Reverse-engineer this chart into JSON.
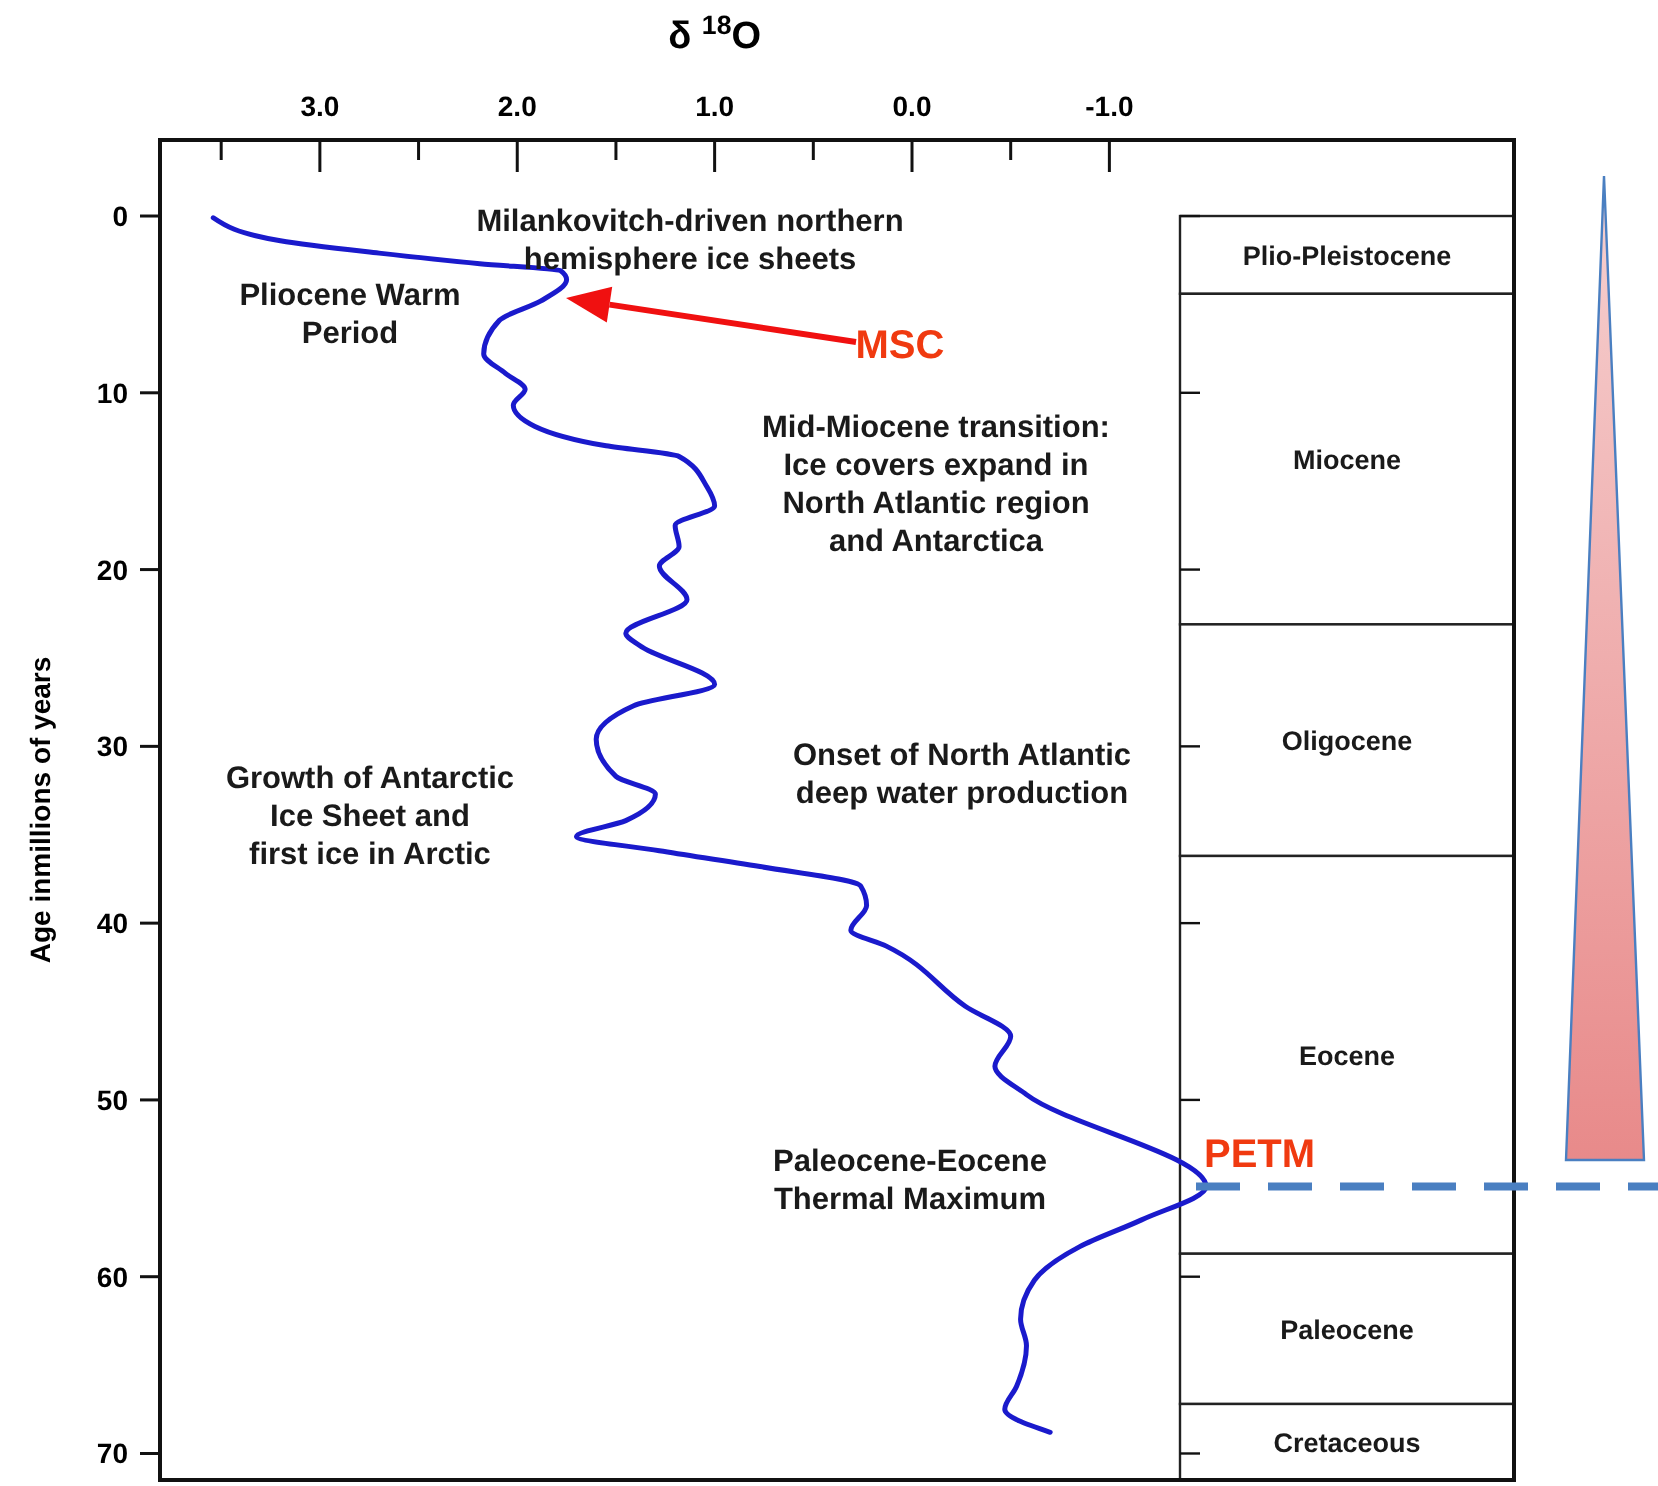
{
  "chart_data": {
    "type": "line",
    "xlabel": "δ $^{18}$O",
    "ylabel": "Age inmillions of years",
    "xlim": [
      3.81,
      -3.05
    ],
    "ylim": [
      71.5,
      -4.3
    ],
    "xticks": [
      {
        "value": 3.5,
        "label": null
      },
      {
        "value": 3.0,
        "label": "3.0"
      },
      {
        "value": 2.5,
        "label": null
      },
      {
        "value": 2.0,
        "label": "2.0"
      },
      {
        "value": 1.5,
        "label": null
      },
      {
        "value": 1.0,
        "label": "1.0"
      },
      {
        "value": 0.5,
        "label": null
      },
      {
        "value": 0.0,
        "label": "0.0"
      },
      {
        "value": -0.5,
        "label": null
      },
      {
        "value": -1.0,
        "label": "-1.0"
      }
    ],
    "yticks": [
      0,
      10,
      20,
      30,
      40,
      50,
      60,
      70
    ],
    "grid": false,
    "series": [
      {
        "color": "#1a1acc",
        "x": [
          3.54,
          3.2,
          2.7,
          2.19,
          1.78,
          1.75,
          1.88,
          2.09,
          2.17,
          2.06,
          1.96,
          2.02,
          1.91,
          1.55,
          1.18,
          1.04,
          1.0,
          1.2,
          1.18,
          1.28,
          1.14,
          1.45,
          1.38,
          1.0,
          1.41,
          1.6,
          1.5,
          1.3,
          1.45,
          1.7,
          1.28,
          0.77,
          0.26,
          0.23,
          0.31,
          0.13,
          -0.27,
          -0.5,
          -0.42,
          -0.58,
          -1.49,
          -1.16,
          -0.85,
          -0.62,
          -0.55,
          -0.58,
          -0.53,
          -0.47,
          -0.7
        ],
        "values": [
          0.1,
          1.4,
          2.1,
          2.7,
          3.1,
          3.6,
          4.8,
          5.9,
          7.8,
          8.9,
          9.8,
          10.7,
          11.9,
          13.0,
          13.6,
          15.3,
          16.4,
          17.5,
          18.7,
          19.8,
          21.7,
          23.6,
          24.3,
          26.5,
          27.7,
          29.6,
          31.7,
          32.7,
          34.2,
          35.1,
          35.9,
          36.8,
          37.9,
          39.0,
          40.4,
          41.3,
          44.7,
          46.4,
          48.1,
          49.7,
          54.9,
          56.8,
          58.3,
          60.2,
          62.4,
          63.9,
          66.2,
          67.5,
          68.8
        ]
      }
    ],
    "bands": [
      {
        "axis": "y",
        "from": 0,
        "to": 4.4,
        "label": "Plio-Pleistocene",
        "color": "#ffffff"
      },
      {
        "axis": "y",
        "from": 4.4,
        "to": 23.1,
        "label": "Miocene",
        "color": "#ffffff"
      },
      {
        "axis": "y",
        "from": 23.1,
        "to": 36.2,
        "label": "Oligocene",
        "color": "#ffffff"
      },
      {
        "axis": "y",
        "from": 36.2,
        "to": 58.7,
        "label": "Eocene",
        "color": "#ffffff"
      },
      {
        "axis": "y",
        "from": 58.7,
        "to": 67.2,
        "label": "Paleocene",
        "color": "#ffffff"
      },
      {
        "axis": "y",
        "from": 67.2,
        "to": 71.5,
        "label": "Cretaceous",
        "color": "#ffffff"
      }
    ],
    "ref_lines": [
      {
        "axis": "y",
        "value": 54.9,
        "label": "PETM",
        "color": "#4a7fc1",
        "line_style": "dashed"
      }
    ],
    "annotations": [
      "Milankovitch-driven northern\nhemisphere ice sheets",
      "Pliocene Warm\nPeriod",
      "MSC",
      "Mid-Miocene transition:\nIce covers expand in\nNorth Atlantic region\nand Antarctica",
      "Onset of North Atlantic\ndeep water production",
      "Growth of Antarctic\nIce Sheet and\nfirst ice in Arctic",
      "Paleocene-Eocene\nThermal Maximum"
    ]
  }
}
